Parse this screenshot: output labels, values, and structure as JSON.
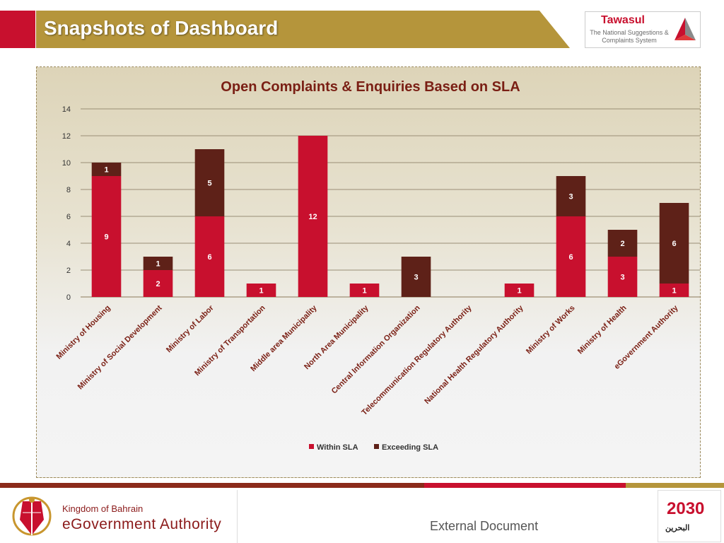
{
  "header": {
    "title": "Snapshots of Dashboard"
  },
  "tawasul": {
    "name": "Tawasul",
    "subtitle": "The National Suggestions & Complaints System"
  },
  "colors": {
    "within": "#c8102e",
    "exceeding": "#5e2118",
    "header_gold": "#b5953b",
    "brand_red": "#c8102e"
  },
  "chart_data": {
    "type": "bar",
    "stacked": true,
    "title": "Open Complaints & Enquiries Based on SLA",
    "xlabel": "",
    "ylabel": "",
    "ylim": [
      0,
      14
    ],
    "yticks": [
      0,
      2,
      4,
      6,
      8,
      10,
      12,
      14
    ],
    "grid": true,
    "legend_position": "bottom",
    "categories": [
      "Ministry of Housing",
      "Ministry of Social Development",
      "Ministry of Labor",
      "Ministry of Transportation",
      "Middle area Municipality",
      "North Area Municipality",
      "Central Information Organization",
      "Telecommunication Regulatory Authority",
      "National Health Regulatory Authority",
      "Ministry of Works",
      "Ministry of Health",
      "eGovernment Authority"
    ],
    "series": [
      {
        "name": "Within SLA",
        "values": [
          9,
          2,
          6,
          1,
          12,
          1,
          0,
          0,
          1,
          6,
          3,
          1
        ]
      },
      {
        "name": "Exceeding SLA",
        "values": [
          1,
          1,
          5,
          0,
          0,
          0,
          3,
          0,
          0,
          3,
          2,
          6
        ]
      }
    ]
  },
  "footer": {
    "kingdom": "Kingdom of Bahrain",
    "authority": "eGovernment Authority",
    "document_label": "External Document",
    "vision_year": "2030",
    "vision_text": "البحرين"
  }
}
